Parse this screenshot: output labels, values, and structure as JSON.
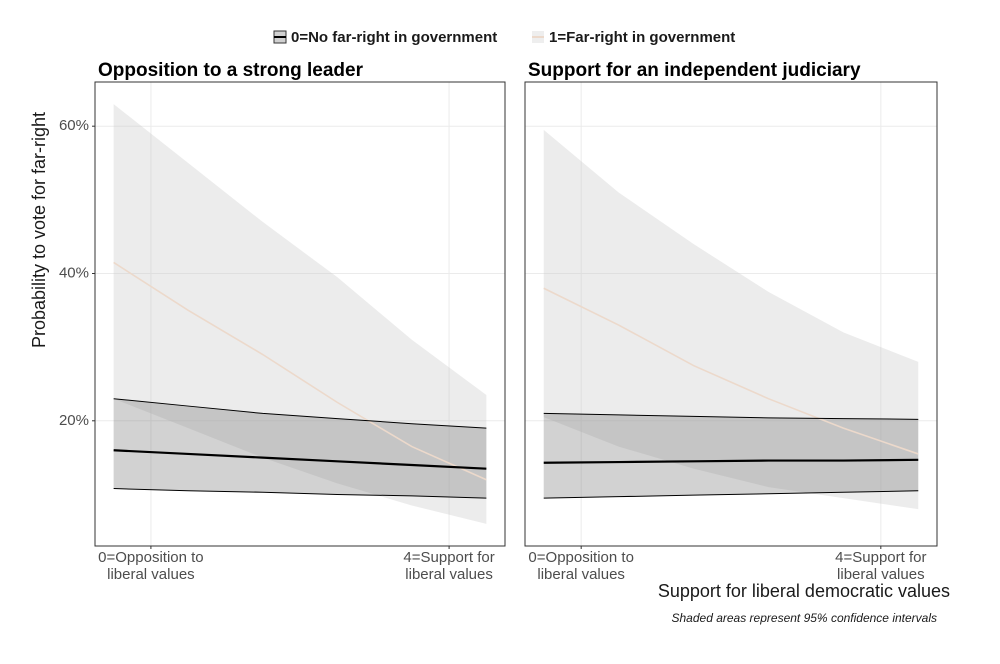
{
  "chart_data": [
    {
      "type": "line",
      "title": "Opposition to a strong leader",
      "x": [
        -0.5,
        0.5,
        1.5,
        2.5,
        3.5,
        4.5
      ],
      "xlim": [
        -0.75,
        4.75
      ],
      "xticks": [
        {
          "value": 0,
          "label": "0=Opposition to\nliberal values"
        },
        {
          "value": 4,
          "label": "4=Support for\nliberal values"
        }
      ],
      "ylim": [
        3,
        66
      ],
      "yticks": [
        {
          "value": 20,
          "label": "20%"
        },
        {
          "value": 40,
          "label": "40%"
        },
        {
          "value": 60,
          "label": "60%"
        }
      ],
      "grid": true,
      "series": [
        {
          "name": "0=No far-right in government",
          "color": "#000000",
          "band_color": "#7f7f7f",
          "values": [
            16,
            15.5,
            15,
            14.5,
            14,
            13.5
          ],
          "upper": [
            23,
            22,
            21,
            20.3,
            19.6,
            19
          ],
          "lower": [
            10.8,
            10.5,
            10.3,
            10,
            9.8,
            9.5
          ]
        },
        {
          "name": "1=Far-right in government",
          "color": "#ecd9cb",
          "band_color": "#c8c8c8",
          "values": [
            41.5,
            35,
            29,
            22.5,
            16.5,
            12
          ],
          "upper": [
            63,
            55,
            47,
            39.5,
            31,
            23.5
          ],
          "lower": [
            23,
            19,
            15,
            11.5,
            8.5,
            6
          ]
        }
      ]
    },
    {
      "type": "line",
      "title": "Support for an independent judiciary",
      "x": [
        -0.5,
        0.5,
        1.5,
        2.5,
        3.5,
        4.5
      ],
      "xlim": [
        -0.75,
        4.75
      ],
      "xticks": [
        {
          "value": 0,
          "label": "0=Opposition to\nliberal values"
        },
        {
          "value": 4,
          "label": "4=Support for\nliberal values"
        }
      ],
      "ylim": [
        3,
        66
      ],
      "yticks": [
        20,
        40,
        60
      ],
      "grid": true,
      "series": [
        {
          "name": "0=No far-right in government",
          "color": "#000000",
          "band_color": "#7f7f7f",
          "values": [
            14.3,
            14.4,
            14.5,
            14.6,
            14.6,
            14.7
          ],
          "upper": [
            21,
            20.8,
            20.6,
            20.4,
            20.3,
            20.2
          ],
          "lower": [
            9.5,
            9.7,
            9.9,
            10.1,
            10.3,
            10.5
          ]
        },
        {
          "name": "1=Far-right in government",
          "color": "#ecd9cb",
          "band_color": "#c8c8c8",
          "values": [
            38,
            33,
            27.5,
            23,
            19,
            15.5
          ],
          "upper": [
            59.5,
            51,
            44,
            37.5,
            32,
            28
          ],
          "lower": [
            20.5,
            16.5,
            13.5,
            11,
            9.5,
            8
          ]
        }
      ]
    }
  ],
  "y_label": "Probability to vote for far-right",
  "x_label": "Support for liberal democratic values",
  "note": "Shaded areas represent 95% confidence intervals"
}
